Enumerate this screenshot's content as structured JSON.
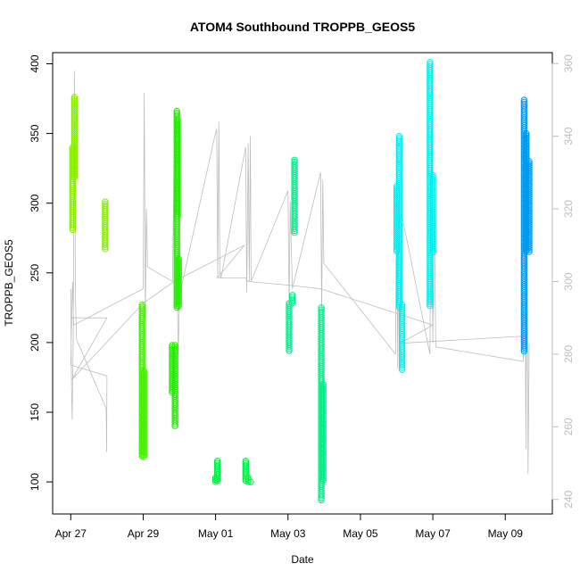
{
  "chart_data": {
    "type": "scatter",
    "title": "ATOM4 Southbound TROPPB_GEOS5",
    "xlabel": "Date",
    "ylabel": "TROPPB_GEOS5",
    "x_tick_labels": [
      "Apr 27",
      "Apr 29",
      "May 01",
      "May 03",
      "May 05",
      "May 07",
      "May 09"
    ],
    "x_tick_days": [
      0,
      2,
      4,
      6,
      8,
      10,
      12
    ],
    "xlim_days": [
      -0.5,
      13.3
    ],
    "ylim": [
      77,
      408
    ],
    "y_ticks": [
      100,
      150,
      200,
      250,
      300,
      350,
      400
    ],
    "y2_ticks": [
      240,
      260,
      280,
      300,
      320,
      340,
      360
    ],
    "y2lim": [
      236,
      363
    ],
    "grid": false,
    "series": [
      {
        "color": "#88ee00",
        "segments": [
          [
            0.05,
            280,
            312
          ],
          [
            0.05,
            312,
            340
          ],
          [
            0.1,
            318,
            376
          ],
          [
            0.95,
            267,
            301
          ]
        ]
      },
      {
        "color": "#44ee00",
        "segments": [
          [
            1.97,
            118,
            227
          ],
          [
            2.02,
            118,
            180
          ]
        ]
      },
      {
        "color": "#22ee00",
        "segments": [
          [
            2.8,
            164,
            198
          ],
          [
            2.88,
            140,
            198
          ],
          [
            2.93,
            225,
            366
          ],
          [
            2.98,
            225,
            260
          ],
          [
            2.95,
            290,
            360
          ]
        ]
      },
      {
        "color": "#00ee44",
        "segments": [
          [
            4.05,
            100,
            115
          ],
          [
            4.0,
            100,
            103
          ],
          [
            4.83,
            100,
            115
          ],
          [
            4.9,
            100,
            103
          ],
          [
            4.97,
            100,
            100
          ]
        ]
      },
      {
        "color": "#00ee88",
        "segments": [
          [
            6.03,
            193,
            228
          ],
          [
            6.12,
            228,
            234
          ],
          [
            6.18,
            278,
            331
          ],
          [
            6.92,
            86,
            225
          ],
          [
            6.97,
            100,
            170
          ]
        ]
      },
      {
        "color": "#00eeee",
        "segments": [
          [
            9.0,
            265,
            312
          ],
          [
            9.07,
            225,
            348
          ],
          [
            9.15,
            180,
            227
          ],
          [
            9.92,
            225,
            401
          ],
          [
            10.0,
            265,
            320
          ]
        ]
      },
      {
        "color": "#0099ee",
        "segments": [
          [
            12.52,
            193,
            374
          ],
          [
            12.58,
            265,
            350
          ],
          [
            12.66,
            265,
            330
          ]
        ]
      }
    ],
    "secondary_series": {
      "color": "#bdbdbd",
      "points": [
        [
          0.0,
          298
        ],
        [
          0.02,
          272
        ],
        [
          0.04,
          262
        ],
        [
          0.07,
          285
        ],
        [
          0.1,
          358
        ],
        [
          0.13,
          296
        ],
        [
          0.16,
          284
        ],
        [
          0.98,
          265
        ],
        [
          0.99,
          253
        ],
        [
          1.0,
          274
        ],
        [
          0.0,
          277
        ],
        [
          0.05,
          300
        ],
        [
          0.08,
          288
        ],
        [
          2.0,
          298
        ],
        [
          2.03,
          352
        ],
        [
          2.06,
          290
        ],
        [
          2.09,
          320
        ],
        [
          2.12,
          304
        ],
        [
          2.81,
          300
        ],
        [
          2.85,
          330
        ],
        [
          2.88,
          338
        ],
        [
          2.92,
          312
        ],
        [
          2.97,
          280
        ],
        [
          3.0,
          296
        ],
        [
          4.0,
          341
        ],
        [
          4.03,
          342
        ],
        [
          4.06,
          301
        ],
        [
          4.09,
          344
        ],
        [
          4.12,
          302
        ],
        [
          4.15,
          301
        ],
        [
          4.83,
          337
        ],
        [
          4.86,
          297
        ],
        [
          4.9,
          338
        ],
        [
          4.93,
          300
        ],
        [
          4.96,
          340
        ],
        [
          4.98,
          300
        ],
        [
          6.0,
          325
        ],
        [
          6.03,
          293
        ],
        [
          6.06,
          322
        ],
        [
          6.09,
          310
        ],
        [
          6.12,
          298
        ],
        [
          6.9,
          330
        ],
        [
          6.93,
          292
        ],
        [
          6.96,
          328
        ],
        [
          6.99,
          305
        ],
        [
          8.97,
          280
        ],
        [
          9.0,
          328
        ],
        [
          9.03,
          276
        ],
        [
          9.06,
          321
        ],
        [
          9.1,
          289
        ],
        [
          9.15,
          318
        ],
        [
          9.92,
          280
        ],
        [
          9.96,
          343
        ],
        [
          10.0,
          283
        ],
        [
          10.04,
          320
        ],
        [
          10.08,
          282
        ],
        [
          12.5,
          278
        ],
        [
          12.54,
          327
        ],
        [
          12.57,
          254
        ],
        [
          12.6,
          318
        ],
        [
          12.63,
          247
        ],
        [
          12.66,
          283
        ]
      ],
      "path": [
        [
          0.02,
          290
        ],
        [
          1.0,
          290
        ],
        [
          0.03,
          273
        ],
        [
          2.0,
          294
        ],
        [
          2.85,
          300
        ],
        [
          4.8,
          310
        ],
        [
          4.05,
          301
        ],
        [
          4.83,
          301
        ],
        [
          4.9,
          300
        ],
        [
          6.0,
          299
        ],
        [
          6.9,
          298
        ],
        [
          10.0,
          288
        ],
        [
          9.1,
          283
        ],
        [
          12.6,
          285
        ]
      ]
    }
  }
}
